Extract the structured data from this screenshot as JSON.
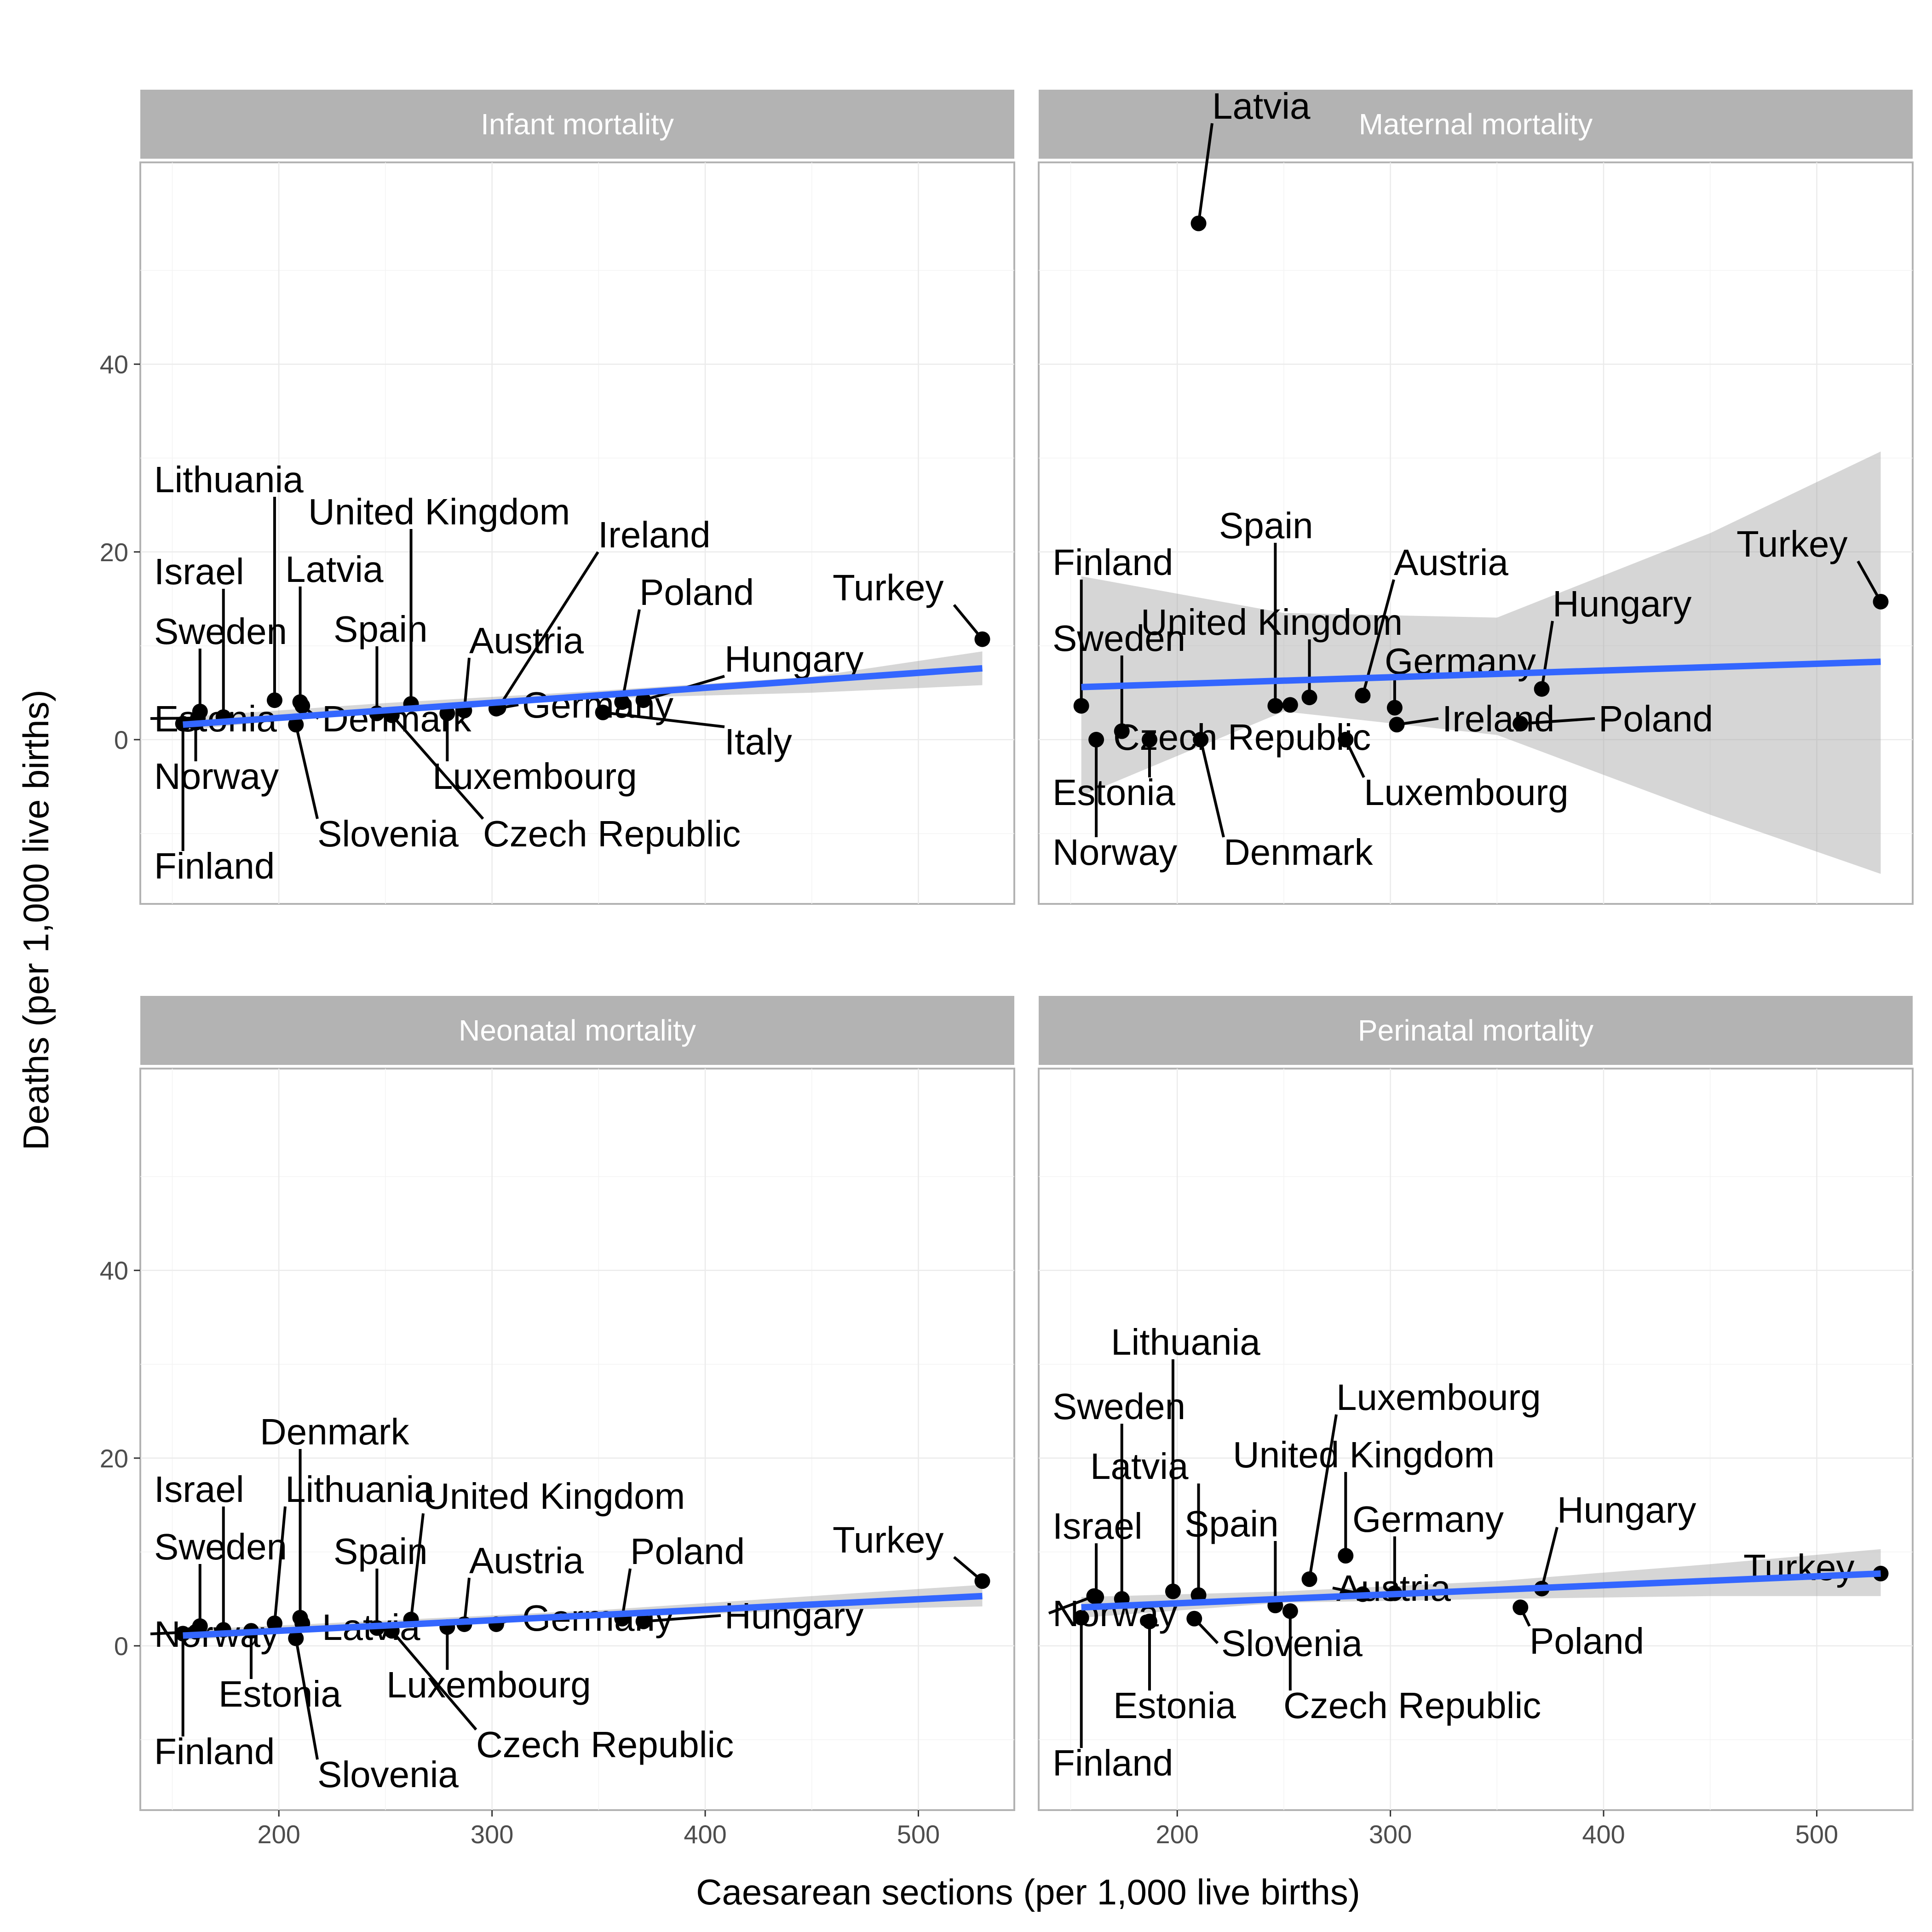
{
  "chart_data": {
    "type": "scatter",
    "xlabel": "Caesarean sections (per 1,000 live births)",
    "ylabel": "Deaths (per 1,000 live births)",
    "xlim": [
      135,
      545
    ],
    "ylim": [
      -17.5,
      61.5
    ],
    "xticks": [
      200,
      300,
      400,
      500
    ],
    "yticks": [
      0,
      20,
      40
    ],
    "grid": true,
    "facets": [
      {
        "title": "Infant mortality",
        "fit": {
          "x": [
            155,
            530
          ],
          "y": [
            1.6,
            7.6
          ],
          "band_x": [
            155,
            250,
            350,
            450,
            530
          ],
          "band_lo": [
            1.0,
            3.1,
            4.4,
            5.0,
            5.8
          ],
          "band_hi": [
            2.4,
            3.9,
            5.2,
            6.7,
            9.4
          ]
        },
        "points": [
          {
            "label": "Finland",
            "x": 155,
            "y": 1.7
          },
          {
            "label": "Norway",
            "x": 161,
            "y": 1.8
          },
          {
            "label": "Estonia",
            "x": 162,
            "y": 2.3
          },
          {
            "label": "Sweden",
            "x": 163,
            "y": 3.0
          },
          {
            "label": "Israel",
            "x": 174,
            "y": 2.4
          },
          {
            "label": "Lithuania",
            "x": 198,
            "y": 4.2
          },
          {
            "label": "Slovenia",
            "x": 208,
            "y": 1.6
          },
          {
            "label": "Latvia",
            "x": 210,
            "y": 4.0
          },
          {
            "label": "Denmark",
            "x": 211,
            "y": 3.6
          },
          {
            "label": "Spain",
            "x": 246,
            "y": 2.8
          },
          {
            "label": "Czech Republic",
            "x": 253,
            "y": 2.6
          },
          {
            "label": "United Kingdom",
            "x": 262,
            "y": 3.8
          },
          {
            "label": "Luxembourg",
            "x": 279,
            "y": 2.8
          },
          {
            "label": "Austria",
            "x": 287,
            "y": 3.1
          },
          {
            "label": "Germany",
            "x": 302,
            "y": 3.3
          },
          {
            "label": "Italy",
            "x": 352,
            "y": 2.9
          },
          {
            "label": "Ireland",
            "x": 303,
            "y": 3.4
          },
          {
            "label": "Poland",
            "x": 361,
            "y": 4.0
          },
          {
            "label": "Hungary",
            "x": 371,
            "y": 4.2
          },
          {
            "label": "Turkey",
            "x": 530,
            "y": 10.7
          }
        ]
      },
      {
        "title": "Maternal mortality",
        "fit": {
          "x": [
            155,
            530
          ],
          "y": [
            5.6,
            8.3
          ],
          "band_x": [
            155,
            250,
            350,
            450,
            530
          ],
          "band_lo": [
            -6.0,
            3.0,
            0.5,
            -8.0,
            -14.3
          ],
          "band_hi": [
            17.4,
            13.5,
            13.0,
            22.0,
            30.7
          ]
        },
        "points": [
          {
            "label": "Finland",
            "x": 155,
            "y": 3.6
          },
          {
            "label": "Norway",
            "x": 162,
            "y": 0.0
          },
          {
            "label": "Sweden",
            "x": 174,
            "y": 0.9
          },
          {
            "label": "Estonia",
            "x": 187,
            "y": 0.0
          },
          {
            "label": "Latvia",
            "x": 210,
            "y": 55.0
          },
          {
            "label": "Denmark",
            "x": 211,
            "y": 0.0
          },
          {
            "label": "Spain",
            "x": 246,
            "y": 3.6
          },
          {
            "label": "Czech Republic",
            "x": 253,
            "y": 3.7
          },
          {
            "label": "United Kingdom",
            "x": 262,
            "y": 4.5
          },
          {
            "label": "Luxembourg",
            "x": 279,
            "y": 0.0
          },
          {
            "label": "Austria",
            "x": 287,
            "y": 4.7
          },
          {
            "label": "Germany",
            "x": 302,
            "y": 3.4
          },
          {
            "label": "Ireland",
            "x": 303,
            "y": 1.6
          },
          {
            "label": "Poland",
            "x": 361,
            "y": 1.7
          },
          {
            "label": "Hungary",
            "x": 371,
            "y": 5.4
          },
          {
            "label": "Turkey",
            "x": 530,
            "y": 14.7
          }
        ]
      },
      {
        "title": "Neonatal mortality",
        "fit": {
          "x": [
            155,
            530
          ],
          "y": [
            1.1,
            5.3
          ],
          "band_x": [
            155,
            250,
            350,
            450,
            530
          ],
          "band_lo": [
            0.6,
            2.0,
            3.0,
            3.8,
            4.2
          ],
          "band_hi": [
            1.7,
            2.7,
            3.8,
            5.3,
            6.5
          ]
        },
        "points": [
          {
            "label": "Finland",
            "x": 155,
            "y": 1.3
          },
          {
            "label": "Norway",
            "x": 161,
            "y": 1.5
          },
          {
            "label": "Sweden",
            "x": 163,
            "y": 2.1
          },
          {
            "label": "Israel",
            "x": 174,
            "y": 1.7
          },
          {
            "label": "Estonia",
            "x": 187,
            "y": 1.6
          },
          {
            "label": "Lithuania",
            "x": 198,
            "y": 2.4
          },
          {
            "label": "Slovenia",
            "x": 208,
            "y": 0.8
          },
          {
            "label": "Denmark",
            "x": 210,
            "y": 3.0
          },
          {
            "label": "Latvia",
            "x": 211,
            "y": 2.4
          },
          {
            "label": "Spain",
            "x": 246,
            "y": 1.9
          },
          {
            "label": "Czech Republic",
            "x": 253,
            "y": 1.6
          },
          {
            "label": "United Kingdom",
            "x": 262,
            "y": 2.8
          },
          {
            "label": "Luxembourg",
            "x": 279,
            "y": 2.0
          },
          {
            "label": "Austria",
            "x": 287,
            "y": 2.3
          },
          {
            "label": "Germany",
            "x": 302,
            "y": 2.3
          },
          {
            "label": "Poland",
            "x": 361,
            "y": 2.9
          },
          {
            "label": "Hungary",
            "x": 371,
            "y": 2.6
          },
          {
            "label": "Turkey",
            "x": 530,
            "y": 6.9
          }
        ]
      },
      {
        "title": "Perinatal mortality",
        "fit": {
          "x": [
            155,
            530
          ],
          "y": [
            4.1,
            7.7
          ],
          "band_x": [
            155,
            250,
            350,
            450,
            530
          ],
          "band_lo": [
            3.0,
            4.6,
            5.0,
            5.3,
            5.3
          ],
          "band_hi": [
            5.2,
            5.8,
            6.9,
            8.7,
            10.3
          ]
        },
        "points": [
          {
            "label": "Finland",
            "x": 155,
            "y": 3.0
          },
          {
            "label": "Norway",
            "x": 161,
            "y": 5.3
          },
          {
            "label": "Israel",
            "x": 162,
            "y": 5.2
          },
          {
            "label": "Sweden",
            "x": 174,
            "y": 5.0
          },
          {
            "label": "Estonia",
            "x": 187,
            "y": 2.6
          },
          {
            "label": "Lithuania",
            "x": 198,
            "y": 5.8
          },
          {
            "label": "Slovenia",
            "x": 208,
            "y": 2.9
          },
          {
            "label": "Latvia",
            "x": 210,
            "y": 5.4
          },
          {
            "label": "Spain",
            "x": 246,
            "y": 4.3
          },
          {
            "label": "Czech Republic",
            "x": 253,
            "y": 3.7
          },
          {
            "label": "Luxembourg",
            "x": 262,
            "y": 7.1
          },
          {
            "label": "United Kingdom",
            "x": 279,
            "y": 9.6
          },
          {
            "label": "Austria",
            "x": 287,
            "y": 5.5
          },
          {
            "label": "Germany",
            "x": 302,
            "y": 5.6
          },
          {
            "label": "Poland",
            "x": 361,
            "y": 4.1
          },
          {
            "label": "Hungary",
            "x": 371,
            "y": 6.1
          },
          {
            "label": "Turkey",
            "x": 530,
            "y": 7.7
          }
        ]
      }
    ]
  }
}
